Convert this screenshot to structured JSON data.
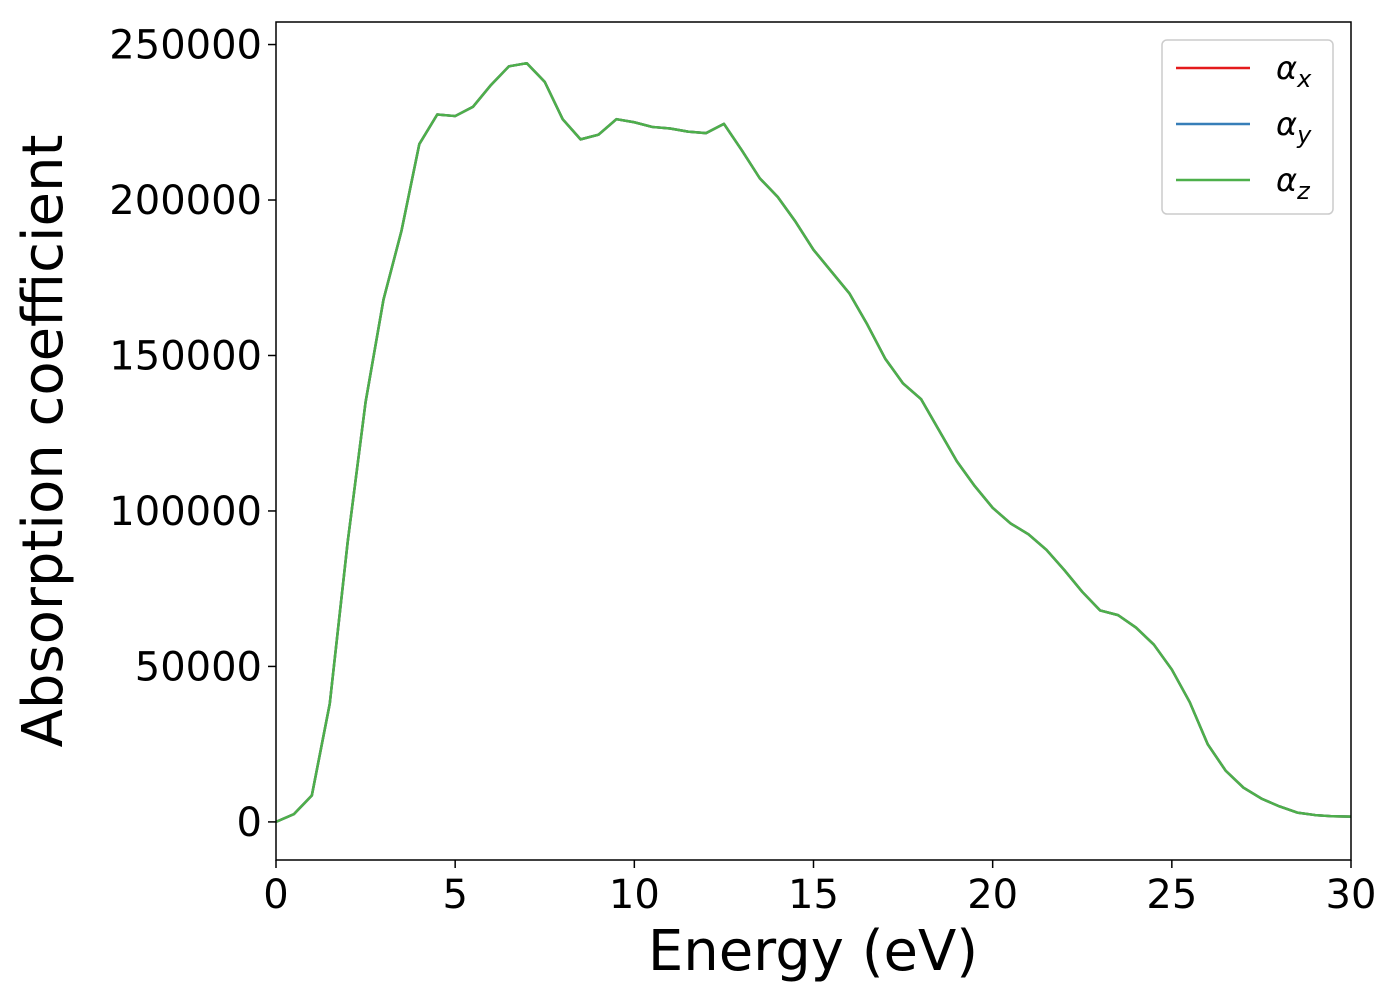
{
  "chart_data": {
    "type": "line",
    "xlabel": "Energy (eV)",
    "ylabel": "Absorption coefficient",
    "x": [
      0,
      0.5,
      1,
      1.5,
      2,
      2.5,
      3,
      3.5,
      4,
      4.5,
      5,
      5.5,
      6,
      6.5,
      7,
      7.5,
      8,
      8.5,
      9,
      9.5,
      10,
      10.5,
      11,
      11.5,
      12,
      12.5,
      13,
      13.5,
      14,
      14.5,
      15,
      15.5,
      16,
      16.5,
      17,
      17.5,
      18,
      18.5,
      19,
      19.5,
      20,
      20.5,
      21,
      21.5,
      22,
      22.5,
      23,
      23.5,
      24,
      24.5,
      25,
      25.5,
      26,
      26.5,
      27,
      27.5,
      28,
      28.5,
      29,
      29.5,
      30
    ],
    "series": [
      {
        "name": "αx",
        "color": "#e41a1c",
        "values": [
          0,
          2500,
          8500,
          38000,
          90000,
          135000,
          168000,
          190000,
          218000,
          227500,
          227000,
          230000,
          237000,
          243000,
          244000,
          238000,
          226000,
          219500,
          221000,
          226000,
          225000,
          223500,
          223000,
          222000,
          221500,
          224500,
          216000,
          207000,
          201000,
          193000,
          184000,
          177000,
          170000,
          160000,
          149000,
          141000,
          136000,
          126000,
          116000,
          108000,
          101000,
          96000,
          92500,
          87500,
          81000,
          74000,
          68000,
          66500,
          62500,
          57000,
          49000,
          38500,
          25000,
          16500,
          11000,
          7500,
          5000,
          3000,
          2200,
          1800,
          1700
        ]
      },
      {
        "name": "αy",
        "color": "#377eb8",
        "values": [
          0,
          2500,
          8500,
          38000,
          90000,
          135000,
          168000,
          190000,
          218000,
          227500,
          227000,
          230000,
          237000,
          243000,
          244000,
          238000,
          226000,
          219500,
          221000,
          226000,
          225000,
          223500,
          223000,
          222000,
          221500,
          224500,
          216000,
          207000,
          201000,
          193000,
          184000,
          177000,
          170000,
          160000,
          149000,
          141000,
          136000,
          126000,
          116000,
          108000,
          101000,
          96000,
          92500,
          87500,
          81000,
          74000,
          68000,
          66500,
          62500,
          57000,
          49000,
          38500,
          25000,
          16500,
          11000,
          7500,
          5000,
          3000,
          2200,
          1800,
          1700
        ]
      },
      {
        "name": "αz",
        "color": "#4daf4a",
        "values": [
          0,
          2500,
          8500,
          38000,
          90000,
          135000,
          168000,
          190000,
          218000,
          227500,
          227000,
          230000,
          237000,
          243000,
          244000,
          238000,
          226000,
          219500,
          221000,
          226000,
          225000,
          223500,
          223000,
          222000,
          221500,
          224500,
          216000,
          207000,
          201000,
          193000,
          184000,
          177000,
          170000,
          160000,
          149000,
          141000,
          136000,
          126000,
          116000,
          108000,
          101000,
          96000,
          92500,
          87500,
          81000,
          74000,
          68000,
          66500,
          62500,
          57000,
          49000,
          38500,
          25000,
          16500,
          11000,
          7500,
          5000,
          3000,
          2200,
          1800,
          1700
        ]
      }
    ],
    "xlim": [
      0,
      30
    ],
    "xticks": [
      0,
      5,
      10,
      15,
      20,
      25,
      30
    ],
    "ylim": [
      -12250,
      257250
    ],
    "yticks": [
      0,
      50000,
      100000,
      150000,
      200000,
      250000
    ],
    "grid": false,
    "legend": "upper right"
  }
}
